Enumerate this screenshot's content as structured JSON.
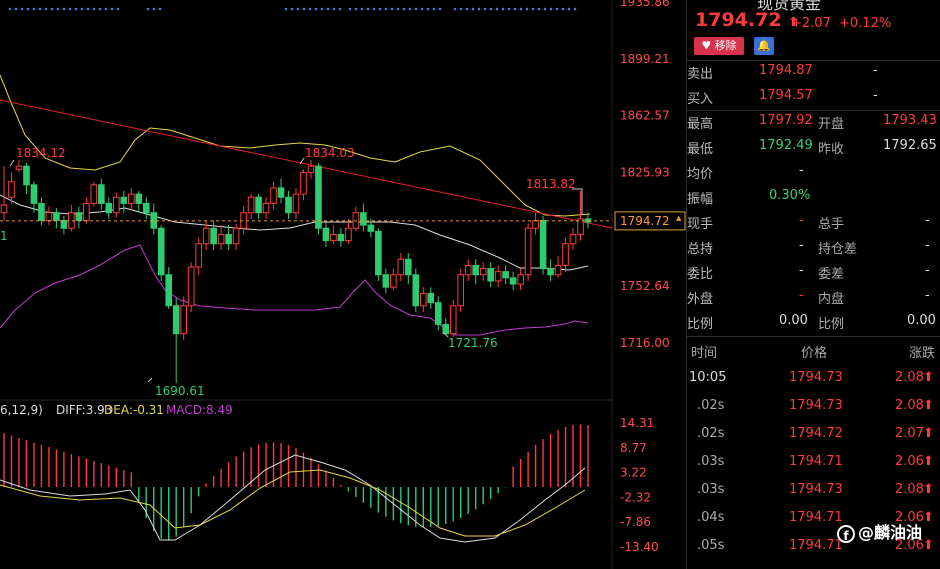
{
  "chart": {
    "price_axis_labels": [
      "1935.86",
      "1899.21",
      "1862.57",
      "1825.93",
      "1752.64",
      "1716.00"
    ],
    "current_price_label": "1794.72",
    "annotations": {
      "high_left": "1834.12",
      "high_mid": "1834.03",
      "recent_high": "1813.82",
      "low_left": "1690.61",
      "low_mid": "1721.76"
    },
    "left_cut_label": "1",
    "macd_legend": {
      "params": "6,12,9)",
      "diff": "DIFF:3.93",
      "dea": "DEA:-0.31",
      "macd": "MACD:8.49"
    },
    "macd_axis_labels": [
      "14.31",
      "8.77",
      "3.22",
      "-2.32",
      "-7.86",
      "-13.40"
    ],
    "colors": {
      "up": "#ff3b3b",
      "down": "#2ecc71",
      "ma_yellow": "#e6d84a",
      "ma_white": "#dddddd",
      "ma_purple": "#c23bd1",
      "trend": "#e02020"
    }
  },
  "chart_data": {
    "type": "candlestick",
    "ylim": [
      1680,
      1940
    ],
    "candles": [
      [
        1800,
        1805,
        1830,
        1795
      ],
      [
        1810,
        1820,
        1826,
        1806
      ],
      [
        1828,
        1830,
        1834,
        1826
      ],
      [
        1830,
        1818,
        1832,
        1812
      ],
      [
        1818,
        1806,
        1820,
        1800
      ],
      [
        1806,
        1795,
        1810,
        1792
      ],
      [
        1795,
        1800,
        1804,
        1792
      ],
      [
        1800,
        1795,
        1803,
        1790
      ],
      [
        1795,
        1790,
        1798,
        1786
      ],
      [
        1790,
        1800,
        1805,
        1788
      ],
      [
        1800,
        1795,
        1804,
        1790
      ],
      [
        1795,
        1806,
        1810,
        1793
      ],
      [
        1806,
        1818,
        1820,
        1804
      ],
      [
        1818,
        1806,
        1822,
        1802
      ],
      [
        1806,
        1800,
        1810,
        1796
      ],
      [
        1800,
        1810,
        1813,
        1797
      ],
      [
        1810,
        1806,
        1814,
        1800
      ],
      [
        1806,
        1812,
        1816,
        1802
      ],
      [
        1812,
        1806,
        1814,
        1800
      ],
      [
        1806,
        1800,
        1810,
        1796
      ],
      [
        1800,
        1790,
        1806,
        1786
      ],
      [
        1790,
        1760,
        1792,
        1756
      ],
      [
        1760,
        1740,
        1765,
        1738
      ],
      [
        1740,
        1722,
        1745,
        1690
      ],
      [
        1722,
        1740,
        1746,
        1718
      ],
      [
        1740,
        1765,
        1768,
        1736
      ],
      [
        1765,
        1780,
        1784,
        1760
      ],
      [
        1780,
        1790,
        1795,
        1776
      ],
      [
        1790,
        1780,
        1795,
        1776
      ],
      [
        1780,
        1786,
        1792,
        1776
      ],
      [
        1786,
        1780,
        1792,
        1776
      ],
      [
        1780,
        1790,
        1793,
        1776
      ],
      [
        1790,
        1800,
        1804,
        1786
      ],
      [
        1800,
        1810,
        1812,
        1796
      ],
      [
        1810,
        1800,
        1812,
        1796
      ],
      [
        1800,
        1806,
        1810,
        1796
      ],
      [
        1806,
        1816,
        1820,
        1802
      ],
      [
        1816,
        1810,
        1822,
        1806
      ],
      [
        1810,
        1800,
        1814,
        1796
      ],
      [
        1800,
        1812,
        1816,
        1796
      ],
      [
        1812,
        1826,
        1828,
        1808
      ],
      [
        1826,
        1830,
        1834,
        1822
      ],
      [
        1830,
        1790,
        1832,
        1786
      ],
      [
        1790,
        1782,
        1794,
        1778
      ],
      [
        1782,
        1786,
        1792,
        1780
      ],
      [
        1786,
        1782,
        1790,
        1778
      ],
      [
        1782,
        1790,
        1796,
        1780
      ],
      [
        1790,
        1800,
        1804,
        1788
      ],
      [
        1800,
        1792,
        1806,
        1788
      ],
      [
        1792,
        1788,
        1796,
        1784
      ],
      [
        1788,
        1760,
        1790,
        1756
      ],
      [
        1760,
        1752,
        1764,
        1748
      ],
      [
        1752,
        1760,
        1764,
        1750
      ],
      [
        1760,
        1770,
        1774,
        1756
      ],
      [
        1770,
        1760,
        1774,
        1754
      ],
      [
        1760,
        1740,
        1764,
        1736
      ],
      [
        1740,
        1748,
        1752,
        1736
      ],
      [
        1748,
        1742,
        1752,
        1738
      ],
      [
        1742,
        1728,
        1746,
        1724
      ],
      [
        1728,
        1722,
        1732,
        1722
      ],
      [
        1722,
        1740,
        1744,
        1720
      ],
      [
        1740,
        1760,
        1764,
        1736
      ],
      [
        1760,
        1766,
        1770,
        1756
      ],
      [
        1766,
        1760,
        1770,
        1754
      ],
      [
        1760,
        1764,
        1768,
        1756
      ],
      [
        1764,
        1756,
        1768,
        1752
      ],
      [
        1756,
        1762,
        1766,
        1752
      ],
      [
        1762,
        1758,
        1766,
        1754
      ],
      [
        1758,
        1754,
        1762,
        1750
      ],
      [
        1754,
        1760,
        1764,
        1750
      ],
      [
        1760,
        1790,
        1793,
        1756
      ],
      [
        1790,
        1795,
        1800,
        1786
      ],
      [
        1795,
        1764,
        1798,
        1760
      ],
      [
        1764,
        1760,
        1770,
        1756
      ],
      [
        1760,
        1766,
        1772,
        1758
      ],
      [
        1766,
        1780,
        1784,
        1762
      ],
      [
        1780,
        1786,
        1790,
        1776
      ],
      [
        1786,
        1796,
        1814,
        1782
      ],
      [
        1796,
        1794,
        1800,
        1790
      ]
    ]
  },
  "panel": {
    "title_cut": "现货黄金",
    "price": "1794.72",
    "arrow": "⬆",
    "change": "+2.07",
    "change_pct": "+0.12%",
    "btn_remove": "移除",
    "rows": {
      "sell_label": "卖出",
      "sell_val": "1794.87",
      "sell_dash": "-",
      "buy_label": "买入",
      "buy_val": "1794.57",
      "buy_dash": "-",
      "high_label": "最高",
      "high_val": "1797.92",
      "open_label": "开盘",
      "open_val": "1793.43",
      "low_label": "最低",
      "low_val": "1792.49",
      "prev_label": "昨收",
      "prev_val": "1792.65",
      "avg_label": "均价",
      "avg_val": "-",
      "amp_label": "振幅",
      "amp_val": "0.30%",
      "now_label": "现手",
      "now_val": "-",
      "total_label": "总手",
      "total_val": "-",
      "hold_label": "总持",
      "hold_val": "-",
      "holdchg_label": "持仓差",
      "holdchg_val": "-",
      "ratio_label": "委比",
      "ratio_val": "-",
      "diff_label": "委差",
      "diff_val": "-",
      "out_label": "外盘",
      "out_val": "-",
      "in_label": "内盘",
      "in_val": "-",
      "bili_label": "比例",
      "bili_val": "0.00",
      "bili2_label": "比例",
      "bili2_val": "0.00"
    },
    "ticks_header": {
      "time": "时间",
      "price": "价格",
      "change": "涨跌"
    },
    "ticks": [
      {
        "time": "10:05",
        "price": "1794.73",
        "change": "2.08"
      },
      {
        "time": ".02s",
        "price": "1794.73",
        "change": "2.08"
      },
      {
        "time": ".02s",
        "price": "1794.72",
        "change": "2.07"
      },
      {
        "time": ".03s",
        "price": "1794.71",
        "change": "2.06"
      },
      {
        "time": ".03s",
        "price": "1794.73",
        "change": "2.08"
      },
      {
        "time": ".04s",
        "price": "1794.71",
        "change": "2.06"
      },
      {
        "time": ".05s",
        "price": "1794.71",
        "change": "2.06"
      }
    ],
    "tick_arrow": "⬆",
    "watermark": "@麟油油",
    "watermark_icon": "f"
  }
}
